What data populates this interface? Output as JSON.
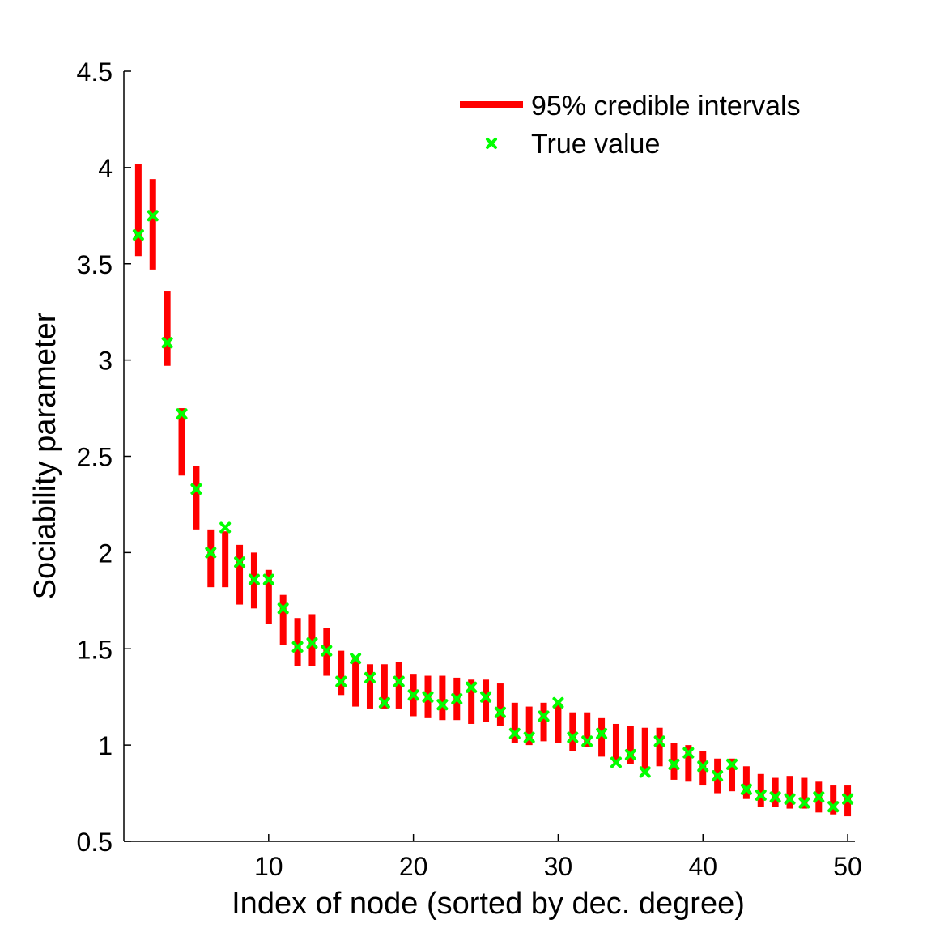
{
  "chart_data": {
    "type": "errorbar",
    "xlabel": "Index of node (sorted by dec. degree)",
    "ylabel": "Sociability parameter",
    "xlim": [
      0,
      50.5
    ],
    "ylim": [
      0.5,
      4.5
    ],
    "xticks": [
      10,
      20,
      30,
      40,
      50
    ],
    "yticks": [
      0.5,
      1,
      1.5,
      2,
      2.5,
      3,
      3.5,
      4,
      4.5
    ],
    "ytick_labels": [
      "0.5",
      "1",
      "1.5",
      "2",
      "2.5",
      "3",
      "3.5",
      "4",
      "4.5"
    ],
    "grid": false,
    "legend": {
      "placement": "top-right",
      "entries": [
        "95% credible intervals",
        "True value"
      ]
    },
    "colors": {
      "interval": "#ff0000",
      "true_value": "#00ff00",
      "marker_edge": "#22aa22"
    },
    "series": [
      {
        "name": "95% credible intervals",
        "x": [
          1,
          2,
          3,
          4,
          5,
          6,
          7,
          8,
          9,
          10,
          11,
          12,
          13,
          14,
          15,
          16,
          17,
          18,
          19,
          20,
          21,
          22,
          23,
          24,
          25,
          26,
          27,
          28,
          29,
          30,
          31,
          32,
          33,
          34,
          35,
          36,
          37,
          38,
          39,
          40,
          41,
          42,
          43,
          44,
          45,
          46,
          47,
          48,
          49,
          50
        ],
        "lower": [
          3.54,
          3.47,
          2.97,
          2.4,
          2.12,
          1.82,
          1.82,
          1.73,
          1.71,
          1.63,
          1.52,
          1.41,
          1.41,
          1.36,
          1.26,
          1.2,
          1.19,
          1.19,
          1.19,
          1.15,
          1.14,
          1.13,
          1.13,
          1.11,
          1.12,
          1.1,
          1.01,
          1.0,
          1.02,
          1.01,
          0.97,
          0.99,
          0.94,
          0.91,
          0.9,
          0.86,
          0.89,
          0.82,
          0.81,
          0.79,
          0.75,
          0.76,
          0.72,
          0.68,
          0.68,
          0.67,
          0.67,
          0.65,
          0.64,
          0.63
        ],
        "upper": [
          4.02,
          3.94,
          3.36,
          2.75,
          2.45,
          2.12,
          2.11,
          2.04,
          2.0,
          1.91,
          1.78,
          1.66,
          1.68,
          1.61,
          1.49,
          1.45,
          1.42,
          1.42,
          1.43,
          1.37,
          1.36,
          1.36,
          1.35,
          1.34,
          1.34,
          1.32,
          1.22,
          1.2,
          1.22,
          1.22,
          1.17,
          1.17,
          1.14,
          1.11,
          1.1,
          1.09,
          1.09,
          1.01,
          1.0,
          0.97,
          0.93,
          0.93,
          0.89,
          0.85,
          0.83,
          0.84,
          0.83,
          0.81,
          0.79,
          0.79
        ]
      },
      {
        "name": "True value",
        "x": [
          1,
          2,
          3,
          4,
          5,
          6,
          7,
          8,
          9,
          10,
          11,
          12,
          13,
          14,
          15,
          16,
          17,
          18,
          19,
          20,
          21,
          22,
          23,
          24,
          25,
          26,
          27,
          28,
          29,
          30,
          31,
          32,
          33,
          34,
          35,
          36,
          37,
          38,
          39,
          40,
          41,
          42,
          43,
          44,
          45,
          46,
          47,
          48,
          49,
          50
        ],
        "values": [
          3.65,
          3.75,
          3.09,
          2.72,
          2.33,
          2.0,
          2.13,
          1.95,
          1.86,
          1.86,
          1.71,
          1.51,
          1.53,
          1.49,
          1.33,
          1.45,
          1.35,
          1.22,
          1.33,
          1.26,
          1.25,
          1.21,
          1.24,
          1.3,
          1.25,
          1.17,
          1.06,
          1.04,
          1.15,
          1.22,
          1.04,
          1.02,
          1.06,
          0.91,
          0.95,
          0.86,
          1.02,
          0.9,
          0.96,
          0.89,
          0.84,
          0.9,
          0.77,
          0.74,
          0.73,
          0.72,
          0.7,
          0.73,
          0.68,
          0.72
        ]
      }
    ]
  }
}
